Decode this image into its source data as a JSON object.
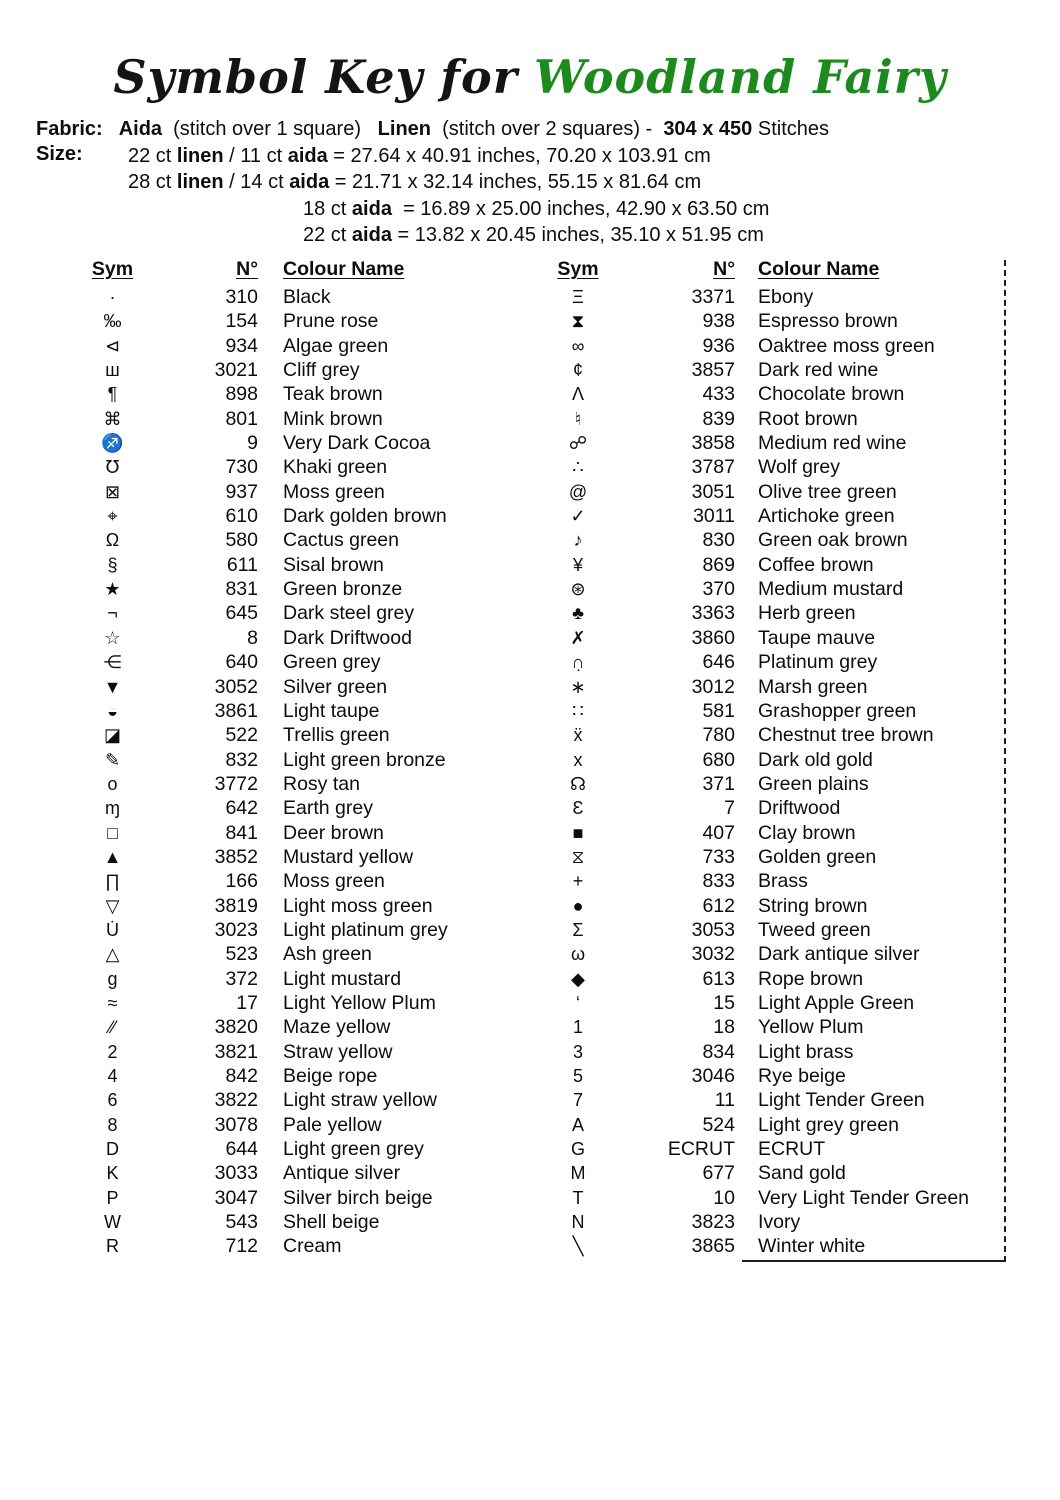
{
  "page": {
    "background": "#ffffff",
    "text_color": "#0d0d0d",
    "accent_green": "#1d8a1d"
  },
  "title": {
    "prefix": "Symbol Key for",
    "name": "Woodland Fairy"
  },
  "fabric": {
    "label": "Fabric:",
    "segments": [
      {
        "text": "Aida",
        "bold": true
      },
      {
        "text": "  (stitch over 1 square)   ",
        "bold": false
      },
      {
        "text": "Linen",
        "bold": true
      },
      {
        "text": "  (stitch over 2 squares) -  ",
        "bold": false
      },
      {
        "text": "304 x 450",
        "bold": true
      },
      {
        "text": " Stitches",
        "bold": false
      }
    ]
  },
  "size": {
    "label": "Size:",
    "lines": [
      {
        "segments": [
          {
            "text": "22 ct ",
            "bold": false
          },
          {
            "text": "linen",
            "bold": true
          },
          {
            "text": " / 11 ct ",
            "bold": false
          },
          {
            "text": "aida",
            "bold": true
          },
          {
            "text": " = 27.64 x 40.91 inches, 70.20 x 103.91 cm",
            "bold": false
          }
        ]
      },
      {
        "segments": [
          {
            "text": "28 ct ",
            "bold": false
          },
          {
            "text": "linen",
            "bold": true
          },
          {
            "text": " / 14 ct ",
            "bold": false
          },
          {
            "text": "aida",
            "bold": true
          },
          {
            "text": " = 21.71 x 32.14 inches, 55.15 x 81.64 cm",
            "bold": false
          }
        ]
      },
      {
        "segments": [
          {
            "text": "18 ct ",
            "bold": false
          },
          {
            "text": "aida",
            "bold": true
          },
          {
            "text": "  = 16.89 x 25.00 inches, 42.90 x 63.50 cm",
            "bold": false
          }
        ]
      },
      {
        "segments": [
          {
            "text": "22 ct ",
            "bold": false
          },
          {
            "text": "aida",
            "bold": true
          },
          {
            "text": " = 13.82 x 20.45 inches, 35.10 x 51.95 cm",
            "bold": false
          }
        ]
      }
    ]
  },
  "table": {
    "headers": {
      "sym": "Sym",
      "no": "N°",
      "name": "Colour Name"
    },
    "left_rows": [
      {
        "sym": "·",
        "no": "310",
        "name": "Black"
      },
      {
        "sym": "‰",
        "no": "154",
        "name": "Prune rose"
      },
      {
        "sym": "⊲",
        "no": "934",
        "name": "Algae green"
      },
      {
        "sym": "ш",
        "no": "3021",
        "name": "Cliff grey"
      },
      {
        "sym": "¶",
        "no": "898",
        "name": "Teak brown"
      },
      {
        "sym": "⌘",
        "no": "801",
        "name": "Mink brown"
      },
      {
        "sym": "♐",
        "no": "9",
        "name": "Very Dark Cocoa"
      },
      {
        "sym": "℧",
        "no": "730",
        "name": "Khaki green"
      },
      {
        "sym": "⊠",
        "no": "937",
        "name": "Moss green"
      },
      {
        "sym": "⌖",
        "no": "610",
        "name": "Dark golden brown"
      },
      {
        "sym": "Ω",
        "no": "580",
        "name": "Cactus green"
      },
      {
        "sym": "§",
        "no": "611",
        "name": "Sisal brown"
      },
      {
        "sym": "★",
        "no": "831",
        "name": "Green bronze"
      },
      {
        "sym": "¬",
        "no": "645",
        "name": "Dark steel grey"
      },
      {
        "sym": "☆",
        "no": "8",
        "name": "Dark Driftwood"
      },
      {
        "sym": "⋲",
        "no": "640",
        "name": "Green grey"
      },
      {
        "sym": "▼",
        "no": "3052",
        "name": "Silver green"
      },
      {
        "sym": "◒",
        "no": "3861",
        "name": "Light taupe"
      },
      {
        "sym": "◪",
        "no": "522",
        "name": "Trellis green"
      },
      {
        "sym": "✎",
        "no": "832",
        "name": "Light green bronze"
      },
      {
        "sym": "o",
        "no": "3772",
        "name": "Rosy tan"
      },
      {
        "sym": "ɱ",
        "no": "642",
        "name": "Earth grey"
      },
      {
        "sym": "□",
        "no": "841",
        "name": "Deer brown"
      },
      {
        "sym": "▲",
        "no": "3852",
        "name": "Mustard yellow"
      },
      {
        "sym": "∏",
        "no": "166",
        "name": "Moss green"
      },
      {
        "sym": "▽",
        "no": "3819",
        "name": "Light moss green"
      },
      {
        "sym": "U̇",
        "no": "3023",
        "name": "Light platinum grey"
      },
      {
        "sym": "△",
        "no": "523",
        "name": "Ash green"
      },
      {
        "sym": "g",
        "no": "372",
        "name": "Light mustard"
      },
      {
        "sym": "≈",
        "no": "17",
        "name": "Light Yellow Plum"
      },
      {
        "sym": "∕∕",
        "no": "3820",
        "name": "Maze yellow"
      },
      {
        "sym": "2",
        "no": "3821",
        "name": "Straw yellow"
      },
      {
        "sym": "4",
        "no": "842",
        "name": "Beige rope"
      },
      {
        "sym": "6",
        "no": "3822",
        "name": "Light straw yellow"
      },
      {
        "sym": "8",
        "no": "3078",
        "name": "Pale yellow"
      },
      {
        "sym": "D",
        "no": "644",
        "name": "Light green grey"
      },
      {
        "sym": "K",
        "no": "3033",
        "name": "Antique silver"
      },
      {
        "sym": "P",
        "no": "3047",
        "name": "Silver birch beige"
      },
      {
        "sym": "W",
        "no": "543",
        "name": "Shell beige"
      },
      {
        "sym": "R",
        "no": "712",
        "name": "Cream"
      }
    ],
    "right_rows": [
      {
        "sym": "Ξ",
        "no": "3371",
        "name": "Ebony"
      },
      {
        "sym": "⧗",
        "no": "938",
        "name": "Espresso brown"
      },
      {
        "sym": "∞",
        "no": "936",
        "name": "Oaktree moss green"
      },
      {
        "sym": "¢",
        "no": "3857",
        "name": "Dark red wine"
      },
      {
        "sym": "Ʌ",
        "no": "433",
        "name": "Chocolate brown"
      },
      {
        "sym": "♮",
        "no": "839",
        "name": "Root brown"
      },
      {
        "sym": "☍",
        "no": "3858",
        "name": "Medium red wine"
      },
      {
        "sym": "∴",
        "no": "3787",
        "name": "Wolf grey"
      },
      {
        "sym": "@",
        "no": "3051",
        "name": "Olive tree green"
      },
      {
        "sym": "✓",
        "no": "3011",
        "name": "Artichoke green"
      },
      {
        "sym": "♪",
        "no": "830",
        "name": "Green oak brown"
      },
      {
        "sym": "¥",
        "no": "869",
        "name": "Coffee brown"
      },
      {
        "sym": "⊛",
        "no": "370",
        "name": "Medium mustard"
      },
      {
        "sym": "♣",
        "no": "3363",
        "name": "Herb green"
      },
      {
        "sym": "✗",
        "no": "3860",
        "name": "Taupe mauve"
      },
      {
        "sym": "∩̣",
        "no": "646",
        "name": "Platinum grey"
      },
      {
        "sym": "∗",
        "no": "3012",
        "name": "Marsh green"
      },
      {
        "sym": "∷",
        "no": "581",
        "name": "Grashopper green"
      },
      {
        "sym": "ẍ",
        "no": "780",
        "name": "Chestnut tree brown"
      },
      {
        "sym": "x",
        "no": "680",
        "name": "Dark old gold"
      },
      {
        "sym": "☊",
        "no": "371",
        "name": "Green plains"
      },
      {
        "sym": "Ɛ",
        "no": "7",
        "name": "Driftwood"
      },
      {
        "sym": "■",
        "no": "407",
        "name": "Clay brown"
      },
      {
        "sym": "⧖",
        "no": "733",
        "name": "Golden green"
      },
      {
        "sym": "+",
        "no": "833",
        "name": "Brass"
      },
      {
        "sym": "●",
        "no": "612",
        "name": "String brown"
      },
      {
        "sym": "Σ",
        "no": "3053",
        "name": "Tweed green"
      },
      {
        "sym": "ω",
        "no": "3032",
        "name": "Dark antique silver"
      },
      {
        "sym": "◆",
        "no": "613",
        "name": "Rope brown"
      },
      {
        "sym": "‘",
        "no": "15",
        "name": "Light Apple Green"
      },
      {
        "sym": "1",
        "no": "18",
        "name": "Yellow Plum"
      },
      {
        "sym": "3",
        "no": "834",
        "name": "Light brass"
      },
      {
        "sym": "5",
        "no": "3046",
        "name": "Rye beige"
      },
      {
        "sym": "7",
        "no": "11",
        "name": "Light Tender Green"
      },
      {
        "sym": "A",
        "no": "524",
        "name": "Light grey green"
      },
      {
        "sym": "G",
        "no": "ECRUT",
        "name": "ECRUT"
      },
      {
        "sym": "M",
        "no": "677",
        "name": "Sand gold"
      },
      {
        "sym": "T",
        "no": "10",
        "name": "Very Light Tender Green"
      },
      {
        "sym": "N",
        "no": "3823",
        "name": "Ivory"
      },
      {
        "sym": "╲",
        "no": "3865",
        "name": "Winter white"
      }
    ]
  }
}
